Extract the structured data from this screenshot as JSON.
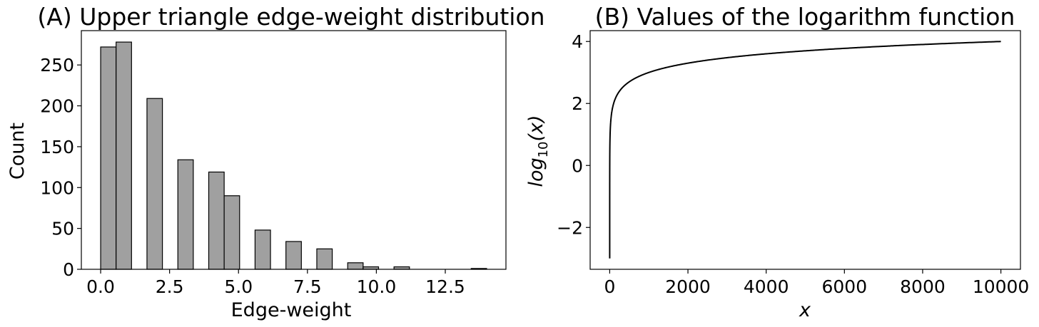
{
  "chart_data": [
    {
      "type": "bar",
      "title": "(A) Upper triangle edge-weight distribution",
      "xlabel": "Edge-weight",
      "ylabel": "Count",
      "xlim": [
        -0.7,
        14.7
      ],
      "ylim": [
        0,
        292
      ],
      "xticks": [
        0.0,
        2.5,
        5.0,
        7.5,
        10.0,
        12.5
      ],
      "xtick_labels": [
        "0.0",
        "2.5",
        "5.0",
        "7.5",
        "10.0",
        "12.5"
      ],
      "yticks": [
        0,
        50,
        100,
        150,
        200,
        250
      ],
      "ytick_labels": [
        "0",
        "50",
        "100",
        "150",
        "200",
        "250"
      ],
      "bar_color": "#a0a0a0",
      "edge_color": "#000000",
      "bins": [
        {
          "x0": 0.0,
          "x1": 0.56,
          "value": 272
        },
        {
          "x0": 0.56,
          "x1": 1.12,
          "value": 278
        },
        {
          "x0": 1.68,
          "x1": 2.24,
          "value": 209
        },
        {
          "x0": 2.8,
          "x1": 3.36,
          "value": 134
        },
        {
          "x0": 3.92,
          "x1": 4.48,
          "value": 119
        },
        {
          "x0": 4.48,
          "x1": 5.04,
          "value": 90
        },
        {
          "x0": 5.6,
          "x1": 6.16,
          "value": 48
        },
        {
          "x0": 6.72,
          "x1": 7.28,
          "value": 34
        },
        {
          "x0": 7.84,
          "x1": 8.4,
          "value": 25
        },
        {
          "x0": 8.96,
          "x1": 9.52,
          "value": 8
        },
        {
          "x0": 9.52,
          "x1": 10.08,
          "value": 3
        },
        {
          "x0": 10.64,
          "x1": 11.2,
          "value": 3
        },
        {
          "x0": 13.44,
          "x1": 14.0,
          "value": 1
        }
      ],
      "grid": false
    },
    {
      "type": "line",
      "title": "(B) Values of the logarithm function",
      "xlabel": "x",
      "ylabel_main": "log",
      "ylabel_sub": "10",
      "ylabel_arg": "(x)",
      "function": "log10",
      "x_range": [
        0.001,
        10000
      ],
      "xlim": [
        -500,
        10500
      ],
      "ylim": [
        -3.35,
        4.35
      ],
      "xticks": [
        0,
        2000,
        4000,
        6000,
        8000,
        10000
      ],
      "xtick_labels": [
        "0",
        "2000",
        "4000",
        "6000",
        "8000",
        "10000"
      ],
      "yticks": [
        -2,
        0,
        2,
        4
      ],
      "ytick_labels": [
        "−2",
        "0",
        "2",
        "4"
      ],
      "line_color": "#000000",
      "grid": false
    }
  ]
}
